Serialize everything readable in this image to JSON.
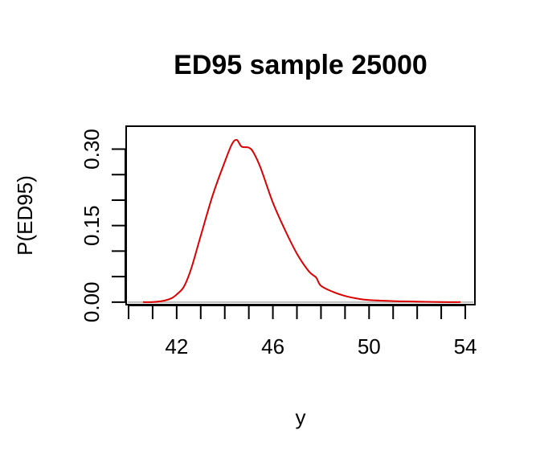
{
  "chart_data": {
    "type": "line",
    "title": "ED95 sample 25000",
    "xlabel": "y",
    "ylabel": "P(ED95)",
    "xlim": [
      39.9,
      54.4
    ],
    "ylim": [
      -0.005,
      0.345
    ],
    "x_ticks": [
      40,
      41,
      42,
      43,
      44,
      45,
      46,
      47,
      48,
      49,
      50,
      51,
      52,
      53,
      54
    ],
    "x_tick_labels": [
      {
        "value": 42,
        "label": "42"
      },
      {
        "value": 46,
        "label": "46"
      },
      {
        "value": 50,
        "label": "50"
      },
      {
        "value": 54,
        "label": "54"
      }
    ],
    "y_ticks": [
      0.0,
      0.05,
      0.1,
      0.15,
      0.2,
      0.25,
      0.3
    ],
    "y_tick_labels": [
      {
        "value": 0.0,
        "label": "0.00"
      },
      {
        "value": 0.15,
        "label": "0.15"
      },
      {
        "value": 0.3,
        "label": "0.30"
      }
    ],
    "baseline": 0,
    "grid": false,
    "series": [
      {
        "color": "#dd0000",
        "x": [
          40.6,
          41.0,
          41.5,
          41.8,
          42.0,
          42.3,
          42.6,
          43.0,
          43.5,
          44.0,
          44.3,
          44.5,
          44.7,
          45.0,
          45.2,
          45.5,
          46.0,
          46.5,
          47.0,
          47.5,
          47.8,
          48.0,
          48.5,
          49.0,
          49.5,
          50.0,
          51.0,
          52.0,
          53.0,
          53.8
        ],
        "y": [
          0.0,
          0.0,
          0.003,
          0.008,
          0.015,
          0.03,
          0.065,
          0.13,
          0.21,
          0.275,
          0.31,
          0.318,
          0.305,
          0.303,
          0.293,
          0.262,
          0.195,
          0.142,
          0.095,
          0.06,
          0.048,
          0.032,
          0.02,
          0.012,
          0.007,
          0.004,
          0.002,
          0.001,
          0.0,
          0.0
        ]
      }
    ]
  }
}
